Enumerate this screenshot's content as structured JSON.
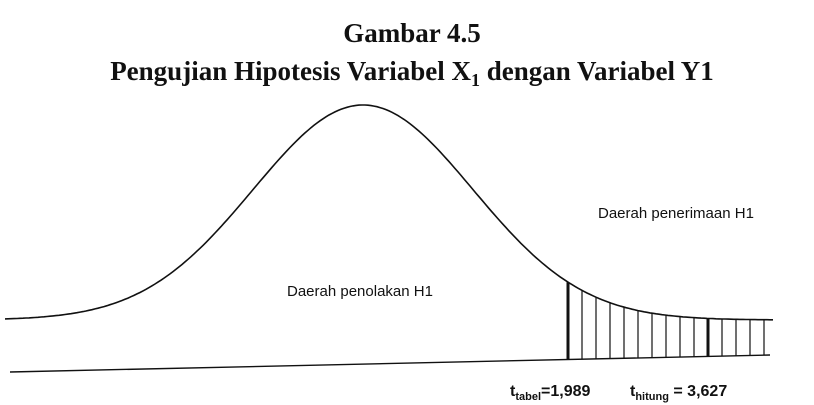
{
  "figure": {
    "number": "Gambar 4.5",
    "title": {
      "before": "Pengujian Hipotesis Variabel X",
      "subscript": "1",
      "after": " dengan Variabel Y1"
    }
  },
  "regions": {
    "rejection": "Daerah penolakan H1",
    "acceptance": "Daerah penerimaan H1"
  },
  "critical_values": [
    {
      "symbol": "t",
      "subscript": "tabel",
      "value": "=1,989"
    },
    {
      "symbol": "t",
      "subscript": "hitung",
      "value": " = 3,627"
    }
  ]
}
